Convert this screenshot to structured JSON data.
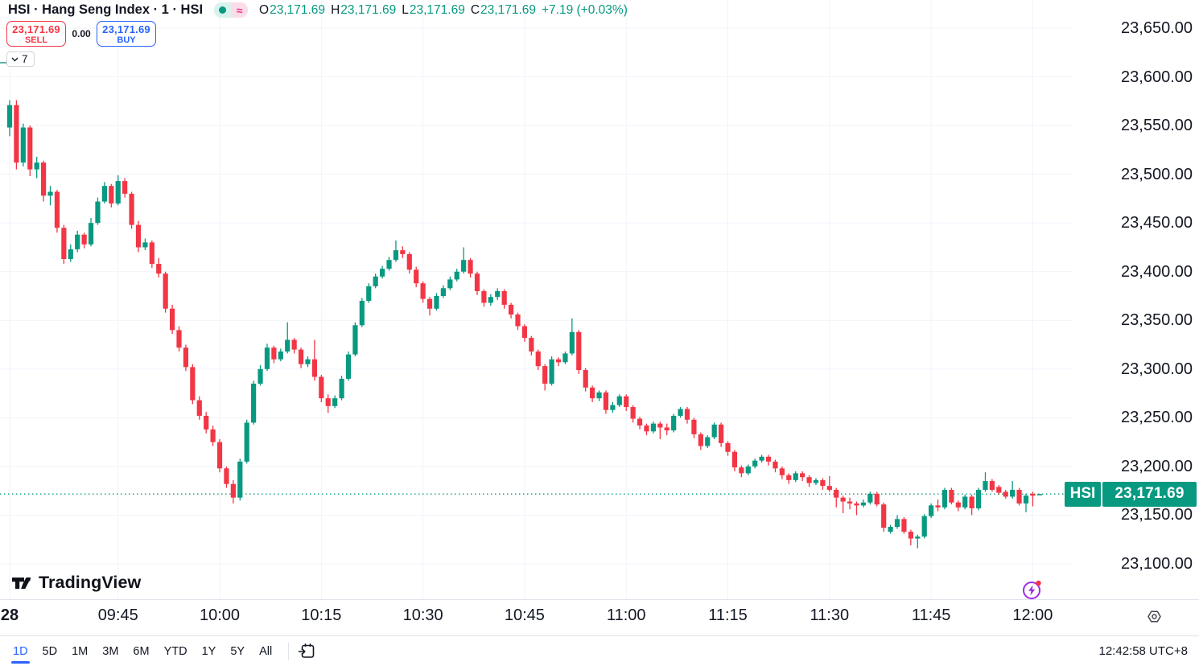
{
  "header": {
    "symbol_title": "HSI · Hang Seng Index · 1 · HSI",
    "approx_symbol": "≈",
    "ohlc": {
      "o_label": "O",
      "o": "23,171.69",
      "h_label": "H",
      "h": "23,171.69",
      "l_label": "L",
      "l": "23,171.69",
      "c_label": "C",
      "c": "23,171.69",
      "change": "+7.19 (+0.03%)"
    },
    "sell_button": {
      "price": "23,171.69",
      "label": "SELL"
    },
    "spread": "0.00",
    "buy_button": {
      "price": "23,171.69",
      "label": "BUY"
    },
    "indicator_count": "7"
  },
  "watermark": {
    "text": "TradingView"
  },
  "price_axis": {
    "labels": [
      "23,650.00",
      "23,600.00",
      "23,550.00",
      "23,500.00",
      "23,450.00",
      "23,400.00",
      "23,350.00",
      "23,300.00",
      "23,250.00",
      "23,200.00",
      "23,150.00",
      "23,100.00"
    ],
    "current": {
      "symbol": "HSI",
      "price": "23,171.69"
    }
  },
  "toolbar": {
    "ranges": [
      "1D",
      "5D",
      "1M",
      "3M",
      "6M",
      "YTD",
      "1Y",
      "5Y",
      "All"
    ],
    "active": "1D",
    "timestamp": "12:42:58 UTC+8"
  },
  "colors": {
    "up": "#089981",
    "down": "#f23645",
    "buy_blue": "#2962ff",
    "sell_red": "#f23645",
    "text": "#131722",
    "grid": "#f0f3fa",
    "border": "#e0e3eb",
    "flash_purple": "#a02be4",
    "alert_dot": "#f23645"
  },
  "chart_data": {
    "type": "candlestick",
    "title": "HSI Hang Seng Index 1-minute chart",
    "symbol": "HSI",
    "interval": "1",
    "current_price": 23171.69,
    "change_text": "+7.19 (+0.03%)",
    "grid": true,
    "ylim": [
      23080,
      23680
    ],
    "y_ticks": [
      23650,
      23600,
      23550,
      23500,
      23450,
      23400,
      23350,
      23300,
      23250,
      23200,
      23150,
      23100
    ],
    "x_ticks": [
      {
        "index": 0,
        "label": "28",
        "bold": true
      },
      {
        "index": 16,
        "label": "09:45"
      },
      {
        "index": 31,
        "label": "10:00"
      },
      {
        "index": 46,
        "label": "10:15"
      },
      {
        "index": 61,
        "label": "10:30"
      },
      {
        "index": 76,
        "label": "10:45"
      },
      {
        "index": 91,
        "label": "11:00"
      },
      {
        "index": 106,
        "label": "11:15"
      },
      {
        "index": 121,
        "label": "11:30"
      },
      {
        "index": 136,
        "label": "11:45"
      },
      {
        "index": 151,
        "label": "12:00"
      }
    ],
    "candles": [
      [
        23548,
        23576,
        23539,
        23571
      ],
      [
        23571,
        23576,
        23505,
        23512
      ],
      [
        23512,
        23552,
        23508,
        23548
      ],
      [
        23548,
        23550,
        23498,
        23505
      ],
      [
        23505,
        23518,
        23496,
        23512
      ],
      [
        23512,
        23514,
        23472,
        23478
      ],
      [
        23478,
        23488,
        23468,
        23482
      ],
      [
        23482,
        23484,
        23440,
        23445
      ],
      [
        23445,
        23448,
        23408,
        23413
      ],
      [
        23413,
        23428,
        23410,
        23423
      ],
      [
        23423,
        23442,
        23420,
        23438
      ],
      [
        23438,
        23440,
        23424,
        23428
      ],
      [
        23428,
        23455,
        23426,
        23450
      ],
      [
        23450,
        23476,
        23448,
        23472
      ],
      [
        23472,
        23492,
        23470,
        23488
      ],
      [
        23488,
        23490,
        23466,
        23470
      ],
      [
        23470,
        23499,
        23468,
        23493
      ],
      [
        23493,
        23496,
        23476,
        23480
      ],
      [
        23480,
        23482,
        23444,
        23448
      ],
      [
        23448,
        23452,
        23420,
        23425
      ],
      [
        23425,
        23434,
        23422,
        23430
      ],
      [
        23430,
        23432,
        23404,
        23408
      ],
      [
        23408,
        23414,
        23394,
        23398
      ],
      [
        23398,
        23400,
        23358,
        23362
      ],
      [
        23362,
        23366,
        23336,
        23340
      ],
      [
        23340,
        23344,
        23318,
        23322
      ],
      [
        23322,
        23325,
        23298,
        23302
      ],
      [
        23302,
        23305,
        23264,
        23268
      ],
      [
        23268,
        23272,
        23248,
        23252
      ],
      [
        23252,
        23256,
        23234,
        23238
      ],
      [
        23238,
        23242,
        23221,
        23225
      ],
      [
        23225,
        23228,
        23194,
        23198
      ],
      [
        23198,
        23200,
        23178,
        23182
      ],
      [
        23182,
        23186,
        23162,
        23168
      ],
      [
        23168,
        23208,
        23165,
        23205
      ],
      [
        23205,
        23248,
        23203,
        23245
      ],
      [
        23245,
        23288,
        23243,
        23285
      ],
      [
        23285,
        23304,
        23283,
        23300
      ],
      [
        23300,
        23326,
        23298,
        23322
      ],
      [
        23322,
        23324,
        23306,
        23310
      ],
      [
        23310,
        23321,
        23308,
        23318
      ],
      [
        23318,
        23348,
        23316,
        23330
      ],
      [
        23330,
        23332,
        23316,
        23320
      ],
      [
        23320,
        23322,
        23301,
        23305
      ],
      [
        23305,
        23313,
        23302,
        23310
      ],
      [
        23310,
        23330,
        23288,
        23292
      ],
      [
        23292,
        23294,
        23266,
        23270
      ],
      [
        23270,
        23274,
        23255,
        23262
      ],
      [
        23262,
        23273,
        23260,
        23270
      ],
      [
        23270,
        23293,
        23268,
        23290
      ],
      [
        23290,
        23318,
        23288,
        23315
      ],
      [
        23315,
        23348,
        23313,
        23345
      ],
      [
        23345,
        23373,
        23343,
        23370
      ],
      [
        23370,
        23388,
        23368,
        23385
      ],
      [
        23385,
        23398,
        23383,
        23395
      ],
      [
        23395,
        23406,
        23393,
        23403
      ],
      [
        23403,
        23415,
        23401,
        23412
      ],
      [
        23412,
        23432,
        23410,
        23422
      ],
      [
        23422,
        23426,
        23414,
        23418
      ],
      [
        23418,
        23420,
        23398,
        23402
      ],
      [
        23402,
        23405,
        23384,
        23388
      ],
      [
        23388,
        23390,
        23368,
        23372
      ],
      [
        23372,
        23374,
        23355,
        23362
      ],
      [
        23362,
        23378,
        23360,
        23375
      ],
      [
        23375,
        23386,
        23373,
        23383
      ],
      [
        23383,
        23395,
        23381,
        23392
      ],
      [
        23392,
        23403,
        23390,
        23400
      ],
      [
        23400,
        23425,
        23398,
        23412
      ],
      [
        23412,
        23414,
        23394,
        23398
      ],
      [
        23398,
        23400,
        23376,
        23380
      ],
      [
        23380,
        23382,
        23364,
        23368
      ],
      [
        23368,
        23377,
        23365,
        23374
      ],
      [
        23374,
        23383,
        23371,
        23380
      ],
      [
        23380,
        23382,
        23362,
        23366
      ],
      [
        23366,
        23368,
        23352,
        23356
      ],
      [
        23356,
        23358,
        23340,
        23344
      ],
      [
        23344,
        23346,
        23328,
        23332
      ],
      [
        23332,
        23334,
        23314,
        23318
      ],
      [
        23318,
        23320,
        23299,
        23303
      ],
      [
        23303,
        23305,
        23278,
        23285
      ],
      [
        23285,
        23313,
        23283,
        23310
      ],
      [
        23310,
        23312,
        23303,
        23307
      ],
      [
        23307,
        23318,
        23305,
        23316
      ],
      [
        23316,
        23352,
        23314,
        23338
      ],
      [
        23338,
        23340,
        23295,
        23299
      ],
      [
        23299,
        23301,
        23277,
        23281
      ],
      [
        23281,
        23283,
        23266,
        23270
      ],
      [
        23270,
        23278,
        23267,
        23276
      ],
      [
        23276,
        23278,
        23254,
        23258
      ],
      [
        23258,
        23266,
        23255,
        23263
      ],
      [
        23263,
        23274,
        23261,
        23272
      ],
      [
        23272,
        23274,
        23257,
        23261
      ],
      [
        23261,
        23263,
        23245,
        23249
      ],
      [
        23249,
        23251,
        23238,
        23242
      ],
      [
        23242,
        23244,
        23232,
        23236
      ],
      [
        23236,
        23246,
        23234,
        23244
      ],
      [
        23244,
        23246,
        23228,
        23240
      ],
      [
        23240,
        23244,
        23232,
        23237
      ],
      [
        23237,
        23254,
        23235,
        23252
      ],
      [
        23252,
        23261,
        23250,
        23259
      ],
      [
        23259,
        23261,
        23244,
        23248
      ],
      [
        23248,
        23250,
        23229,
        23233
      ],
      [
        23233,
        23235,
        23217,
        23221
      ],
      [
        23221,
        23232,
        23219,
        23230
      ],
      [
        23230,
        23245,
        23228,
        23243
      ],
      [
        23243,
        23245,
        23220,
        23224
      ],
      [
        23224,
        23226,
        23211,
        23215
      ],
      [
        23215,
        23217,
        23195,
        23199
      ],
      [
        23199,
        23201,
        23189,
        23193
      ],
      [
        23193,
        23202,
        23191,
        23200
      ],
      [
        23200,
        23208,
        23198,
        23206
      ],
      [
        23206,
        23212,
        23204,
        23210
      ],
      [
        23210,
        23212,
        23201,
        23205
      ],
      [
        23205,
        23207,
        23194,
        23198
      ],
      [
        23198,
        23200,
        23187,
        23191
      ],
      [
        23191,
        23193,
        23182,
        23186
      ],
      [
        23186,
        23195,
        23184,
        23193
      ],
      [
        23193,
        23195,
        23185,
        23189
      ],
      [
        23189,
        23191,
        23179,
        23183
      ],
      [
        23183,
        23188,
        23181,
        23186
      ],
      [
        23186,
        23188,
        23176,
        23180
      ],
      [
        23180,
        23190,
        23174,
        23176
      ],
      [
        23176,
        23178,
        23158,
        23168
      ],
      [
        23168,
        23170,
        23152,
        23164
      ],
      [
        23164,
        23168,
        23156,
        23162
      ],
      [
        23162,
        23164,
        23150,
        23160
      ],
      [
        23160,
        23166,
        23158,
        23163
      ],
      [
        23163,
        23174,
        23161,
        23172
      ],
      [
        23172,
        23174,
        23159,
        23161
      ],
      [
        23161,
        23163,
        23133,
        23137
      ],
      [
        23133,
        23140,
        23131,
        23138
      ],
      [
        23138,
        23150,
        23136,
        23146
      ],
      [
        23146,
        23148,
        23131,
        23133
      ],
      [
        23133,
        23135,
        23119,
        23126
      ],
      [
        23126,
        23130,
        23116,
        23128
      ],
      [
        23128,
        23151,
        23126,
        23149
      ],
      [
        23149,
        23162,
        23147,
        23160
      ],
      [
        23160,
        23166,
        23154,
        23158
      ],
      [
        23158,
        23178,
        23156,
        23176
      ],
      [
        23176,
        23178,
        23161,
        23163
      ],
      [
        23163,
        23165,
        23154,
        23158
      ],
      [
        23158,
        23171,
        23156,
        23169
      ],
      [
        23169,
        23171,
        23150,
        23157
      ],
      [
        23157,
        23178,
        23155,
        23176
      ],
      [
        23176,
        23194,
        23174,
        23185
      ],
      [
        23185,
        23187,
        23174,
        23176
      ],
      [
        23179,
        23181,
        23171,
        23173
      ],
      [
        23174,
        23176,
        23167,
        23169
      ],
      [
        23169,
        23185,
        23167,
        23176
      ],
      [
        23176,
        23178,
        23160,
        23162
      ],
      [
        23162,
        23172,
        23153,
        23170
      ],
      [
        23172,
        23174,
        23159,
        23170
      ],
      [
        23171.69,
        23171.69,
        23171.69,
        23171.69
      ]
    ]
  }
}
